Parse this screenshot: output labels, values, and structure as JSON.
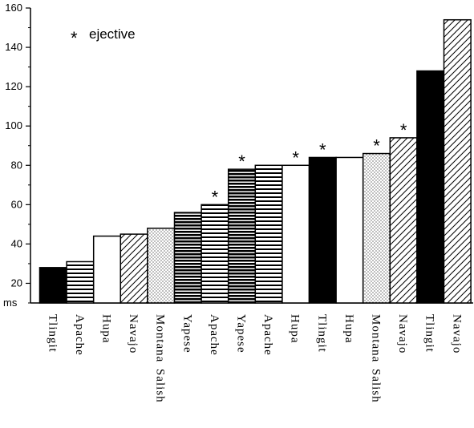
{
  "chart_data": {
    "type": "bar",
    "ylabel": "ms",
    "ylim": [
      10,
      160
    ],
    "yticks": [
      20,
      40,
      60,
      80,
      100,
      120,
      140,
      160
    ],
    "ytick_labels": [
      "20",
      "40",
      "60",
      "80",
      "100",
      "120",
      "140",
      "160"
    ],
    "grid": false,
    "legend": {
      "marker": "*",
      "text": "ejective",
      "placement": "top-left"
    },
    "bars": [
      {
        "label": "Tlingit",
        "label2": "",
        "value": 28,
        "pattern": "solid",
        "ejective": false
      },
      {
        "label": "Apache",
        "label2": "",
        "value": 31,
        "pattern": "hstripes",
        "ejective": false
      },
      {
        "label": "Hupa",
        "label2": "",
        "value": 44,
        "pattern": "white",
        "ejective": false
      },
      {
        "label": "Navajo",
        "label2": "",
        "value": 45,
        "pattern": "diagonal",
        "ejective": false
      },
      {
        "label": "Montana",
        "label2": "Salish",
        "value": 48,
        "pattern": "dots",
        "ejective": false
      },
      {
        "label": "Yapese",
        "label2": "",
        "value": 56,
        "pattern": "hstripes-dense",
        "ejective": false
      },
      {
        "label": "Apache",
        "label2": "",
        "value": 60,
        "pattern": "hstripes",
        "ejective": true
      },
      {
        "label": "Yapese",
        "label2": "",
        "value": 78,
        "pattern": "hstripes-dense",
        "ejective": true
      },
      {
        "label": "Apache",
        "label2": "",
        "value": 80,
        "pattern": "hstripes",
        "ejective": false
      },
      {
        "label": "Hupa",
        "label2": "",
        "value": 80,
        "pattern": "white",
        "ejective": true
      },
      {
        "label": "Tlingit",
        "label2": "",
        "value": 84,
        "pattern": "solid",
        "ejective": true
      },
      {
        "label": "Hupa",
        "label2": "",
        "value": 84,
        "pattern": "white",
        "ejective": false
      },
      {
        "label": "Montana",
        "label2": "Salish",
        "value": 86,
        "pattern": "dots",
        "ejective": true
      },
      {
        "label": "Navajo",
        "label2": "",
        "value": 94,
        "pattern": "diagonal",
        "ejective": true
      },
      {
        "label": "Tlingit",
        "label2": "",
        "value": 128,
        "pattern": "solid",
        "ejective": false
      },
      {
        "label": "Navajo",
        "label2": "",
        "value": 154,
        "pattern": "diagonal",
        "ejective": false
      }
    ]
  }
}
